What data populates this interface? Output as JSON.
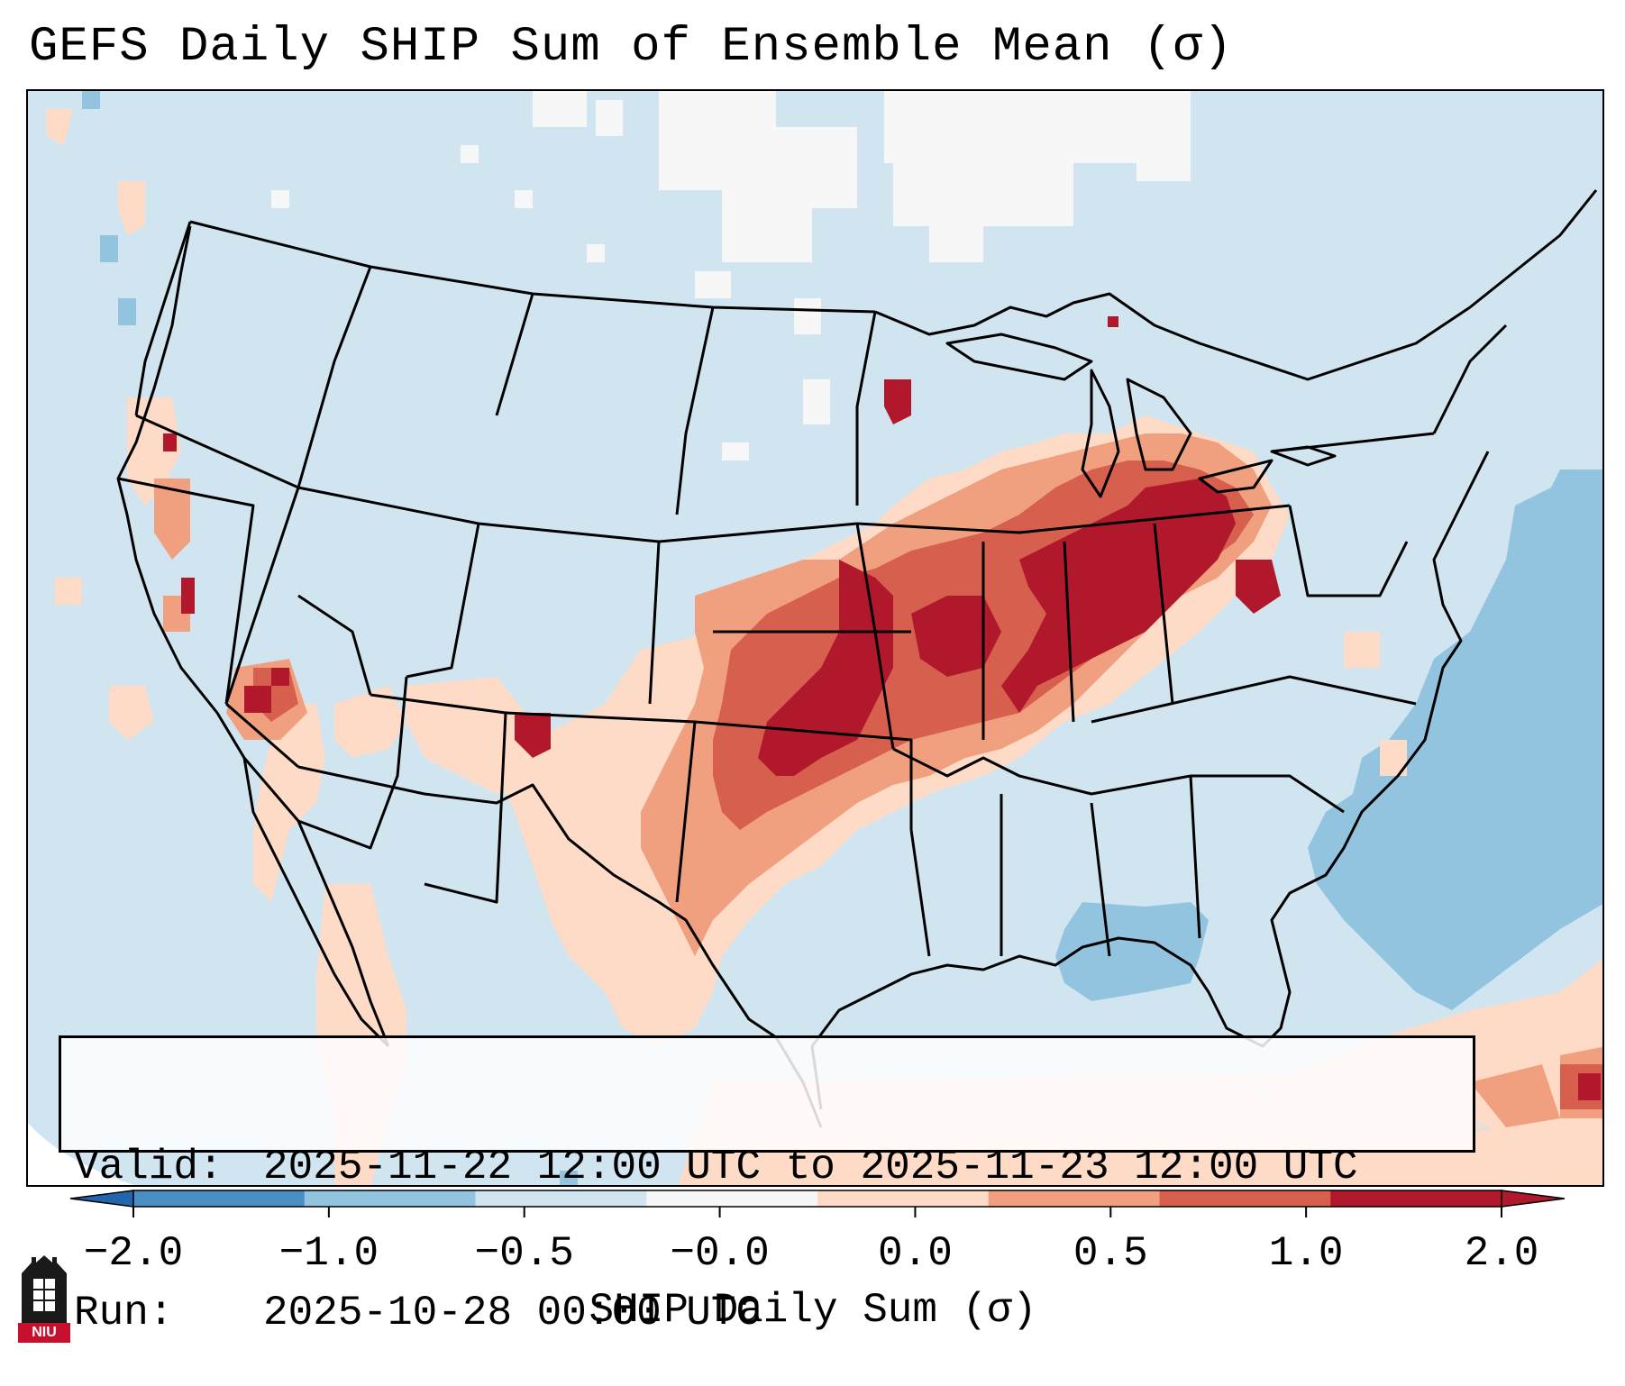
{
  "title": "GEFS Daily SHIP Sum of Ensemble Mean (σ)",
  "info": {
    "valid_label": "Valid:",
    "valid_value": "2025-11-22 12:00 UTC to 2025-11-23 12:00 UTC",
    "run_label": "Run:",
    "run_value": "2025-10-28 00:00 UTC"
  },
  "colorbar": {
    "label": "SHIP Daily Sum (σ)",
    "ticks": [
      "−2.0",
      "−1.0",
      "−0.5",
      "−0.0",
      "0.0",
      "0.5",
      "1.0",
      "2.0"
    ],
    "colors": [
      "#4a8fc4",
      "#93c4df",
      "#d1e5f0",
      "#f7f7f7",
      "#fddbc7",
      "#f0a07f",
      "#d6604d",
      "#b2182b"
    ],
    "under_color": "#2166ac",
    "over_color": "#b2182b"
  },
  "map": {
    "region": "Contiguous United States",
    "background_color": "#d1e5f0",
    "features": [
      {
        "name": "Ohio Valley / Mid-Mississippi maximum",
        "category": ">2.0"
      },
      {
        "name": "Oklahoma / north Texas maximum",
        "category": "1.0 to 2.0"
      },
      {
        "name": "Southeast Atlantic coast minimum",
        "category": "-1.0 to -0.5"
      },
      {
        "name": "Gulf of Mexico minimum",
        "category": "-1.0 to -0.5"
      }
    ]
  },
  "logo": {
    "text": "NIU"
  }
}
